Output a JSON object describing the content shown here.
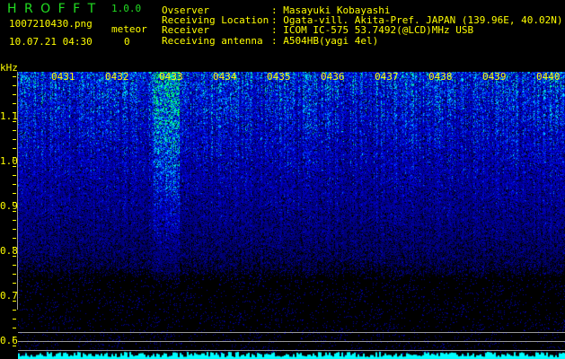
{
  "app": {
    "title": "H R O F F T",
    "version": "1.0.0"
  },
  "file": {
    "name": "1007210430.png",
    "datetime": "10.07.21 04:30"
  },
  "meteor": {
    "label": "meteor",
    "count": "0"
  },
  "info": [
    {
      "label": "Ovserver",
      "value": ": Masayuki Kobayashi"
    },
    {
      "label": "Receiving Location",
      "value": ": Ogata-vill. Akita-Pref. JAPAN (139.96E, 40.02N)"
    },
    {
      "label": "Receiver",
      "value": ": ICOM IC-575 53.7492(@LCD)MHz USB"
    },
    {
      "label": "Receiving antenna",
      "value": ": A504HB(yagi 4el)"
    }
  ],
  "axis": {
    "unit": "kHz",
    "y_labels": [
      "1.1",
      "1.0",
      "0.9",
      "0.8",
      "0.7",
      "0.6"
    ],
    "y_range": [
      0.58,
      1.2
    ],
    "time_labels": [
      "0431",
      "0432",
      "0433",
      "0434",
      "0435",
      "0436",
      "0437",
      "0438",
      "0439",
      "0440"
    ]
  },
  "colors": {
    "text": "#ffff00",
    "title": "#22dd22",
    "noise_low": "#000080",
    "noise_high": "#00ff80",
    "baseline": "#00ffff"
  }
}
